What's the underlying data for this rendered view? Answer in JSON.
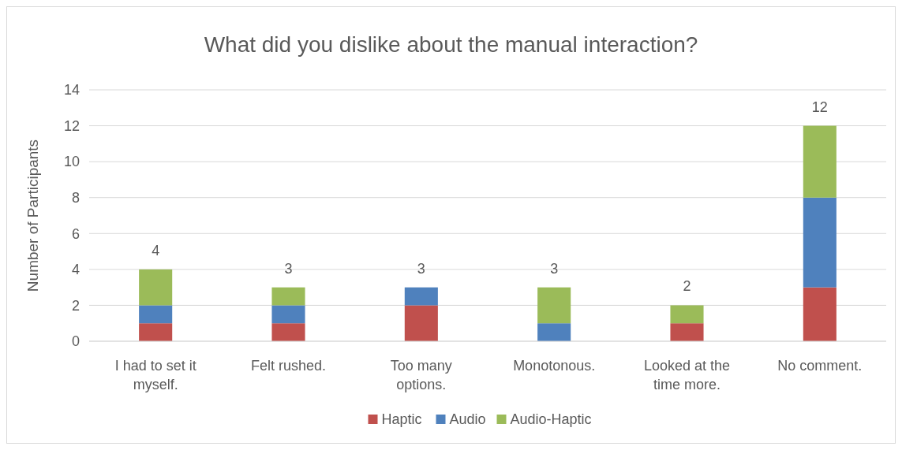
{
  "chart_data": {
    "type": "bar",
    "title": "What did you dislike about the manual interaction?",
    "ylabel": "Number of Participants",
    "categories": [
      "I had to set it myself.",
      "Felt rushed.",
      "Too many options.",
      "Monotonous.",
      "Looked at the time more.",
      "No comment."
    ],
    "series": [
      {
        "name": "Haptic",
        "color": "#c0504d",
        "values": [
          1,
          1,
          2,
          0,
          1,
          3
        ]
      },
      {
        "name": "Audio",
        "color": "#4f81bd",
        "values": [
          1,
          1,
          1,
          1,
          0,
          5
        ]
      },
      {
        "name": "Audio-Haptic",
        "color": "#9bbb59",
        "values": [
          2,
          1,
          0,
          2,
          1,
          4
        ]
      }
    ],
    "stacked": true,
    "totals": [
      "4",
      "3",
      "3",
      "3",
      "2",
      "12"
    ],
    "ylim": [
      0,
      14
    ],
    "yticks": [
      0,
      2,
      4,
      6,
      8,
      10,
      12,
      14
    ],
    "grid": "y",
    "legend": "bottom"
  }
}
